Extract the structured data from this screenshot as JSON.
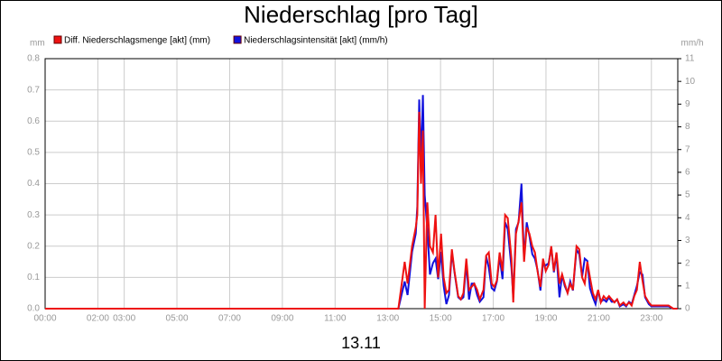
{
  "chart_data": {
    "type": "line",
    "title": "Niederschlag [pro Tag]",
    "ylabel": "mm",
    "y2label": "mm/h",
    "xlabel": "13.11",
    "x": [
      0,
      13.4,
      13.64,
      13.75,
      13.92,
      14.06,
      14.12,
      14.19,
      14.26,
      14.33,
      14.4,
      14.5,
      14.6,
      14.71,
      14.81,
      14.91,
      15.02,
      15.12,
      15.22,
      15.32,
      15.43,
      15.53,
      15.67,
      15.77,
      15.87,
      15.98,
      16.08,
      16.18,
      16.28,
      16.39,
      16.49,
      16.63,
      16.73,
      16.83,
      16.94,
      17.04,
      17.14,
      17.24,
      17.35,
      17.45,
      17.55,
      17.69,
      17.76,
      17.86,
      17.96,
      18.07,
      18.17,
      18.27,
      18.37,
      18.48,
      18.58,
      18.68,
      18.79,
      18.89,
      18.99,
      19.1,
      19.2,
      19.3,
      19.4,
      19.51,
      19.61,
      19.71,
      19.82,
      19.92,
      20.02,
      20.16,
      20.26,
      20.37,
      20.47,
      20.57,
      20.67,
      20.78,
      20.88,
      20.98,
      21.08,
      21.19,
      21.29,
      21.39,
      21.49,
      21.6,
      21.7,
      21.8,
      21.94,
      22.04,
      22.15,
      22.25,
      22.35,
      22.45,
      22.56,
      22.66,
      22.76,
      22.9,
      23.0,
      23.14,
      23.31,
      23.48,
      23.65,
      23.83,
      23.99
    ],
    "series": [
      {
        "name": "Diff. Niederschlagsmenge [akt] (mm)",
        "color": "#ee1111",
        "values": [
          0,
          0,
          0.15,
          0.08,
          0.2,
          0.26,
          0.3,
          0.63,
          0.4,
          0.57,
          0,
          0.34,
          0.2,
          0.18,
          0.3,
          0.1,
          0.24,
          0.1,
          0.05,
          0.06,
          0.19,
          0.12,
          0.04,
          0.03,
          0.05,
          0.16,
          0.06,
          0.07,
          0.08,
          0.06,
          0.03,
          0.06,
          0.17,
          0.18,
          0.08,
          0.07,
          0.09,
          0.18,
          0.12,
          0.3,
          0.29,
          0.16,
          0.02,
          0.24,
          0.28,
          0.34,
          0.15,
          0.26,
          0.24,
          0.2,
          0.18,
          0.12,
          0.07,
          0.16,
          0.12,
          0.14,
          0.2,
          0.12,
          0.18,
          0.08,
          0.11,
          0.08,
          0.05,
          0.08,
          0.06,
          0.2,
          0.19,
          0.1,
          0.08,
          0.15,
          0.1,
          0.05,
          0.03,
          0.06,
          0.02,
          0.04,
          0.03,
          0.04,
          0.03,
          0.02,
          0.03,
          0.01,
          0.02,
          0.01,
          0.02,
          0.01,
          0.04,
          0.06,
          0.15,
          0.09,
          0.04,
          0.02,
          0.01,
          0.01,
          0.01,
          0.01,
          0.01,
          0,
          0
        ]
      },
      {
        "name": "Niederschlagsintensität [akt] (mm/h)",
        "color": "#1111dd",
        "axis": "y2",
        "values": [
          0,
          0,
          1.2,
          0.6,
          2.5,
          3.3,
          4.5,
          9.2,
          6.5,
          9.4,
          5,
          3.5,
          1.5,
          2.0,
          2.2,
          1.3,
          2.5,
          1.0,
          0.2,
          0.6,
          2.5,
          1.6,
          0.5,
          0.4,
          0.5,
          2.0,
          0.4,
          1.1,
          1.1,
          0.6,
          0.3,
          0.5,
          2.3,
          1.8,
          0.9,
          0.8,
          1.2,
          2.3,
          1.3,
          3.8,
          3.5,
          1.8,
          0.5,
          3.5,
          3.8,
          5.5,
          2.2,
          3.8,
          3.2,
          2.4,
          2.2,
          1.7,
          0.8,
          2.0,
          1.9,
          2.0,
          2.7,
          1.6,
          2.4,
          0.5,
          1.5,
          1.0,
          0.7,
          1.2,
          0.8,
          2.6,
          2.4,
          1.4,
          2.2,
          2.1,
          0.9,
          0.5,
          0.2,
          0.8,
          0.3,
          0.4,
          0.3,
          0.5,
          0.3,
          0.3,
          0.4,
          0.1,
          0.2,
          0.1,
          0.3,
          0.2,
          0.6,
          1.0,
          1.6,
          1.5,
          0.5,
          0.2,
          0.1,
          0.1,
          0.1,
          0.1,
          0.1,
          0,
          0
        ]
      }
    ],
    "xlim": [
      0,
      24
    ],
    "xticks": [
      {
        "value": 0,
        "label": "00:00"
      },
      {
        "value": 2,
        "label": "02:00"
      },
      {
        "value": 3,
        "label": "03:00"
      },
      {
        "value": 5,
        "label": "05:00"
      },
      {
        "value": 7,
        "label": "07:00"
      },
      {
        "value": 9,
        "label": "09:00"
      },
      {
        "value": 11,
        "label": "11:00"
      },
      {
        "value": 13,
        "label": "13:00"
      },
      {
        "value": 15,
        "label": "15:00"
      },
      {
        "value": 17,
        "label": "17:00"
      },
      {
        "value": 19,
        "label": "19:00"
      },
      {
        "value": 21,
        "label": "21:00"
      },
      {
        "value": 23,
        "label": "23:00"
      }
    ],
    "ylim": [
      0,
      0.8
    ],
    "yticks": [
      {
        "value": 0,
        "label": "0.0"
      },
      0.1,
      0.2,
      0.3,
      0.4,
      0.5,
      0.6,
      0.7,
      0.8
    ],
    "y2lim": [
      0,
      11
    ],
    "y2ticks": [
      0,
      1,
      2,
      3,
      4,
      5,
      6,
      7,
      8,
      9,
      10,
      11
    ],
    "grid": true,
    "legend": "top-left"
  }
}
